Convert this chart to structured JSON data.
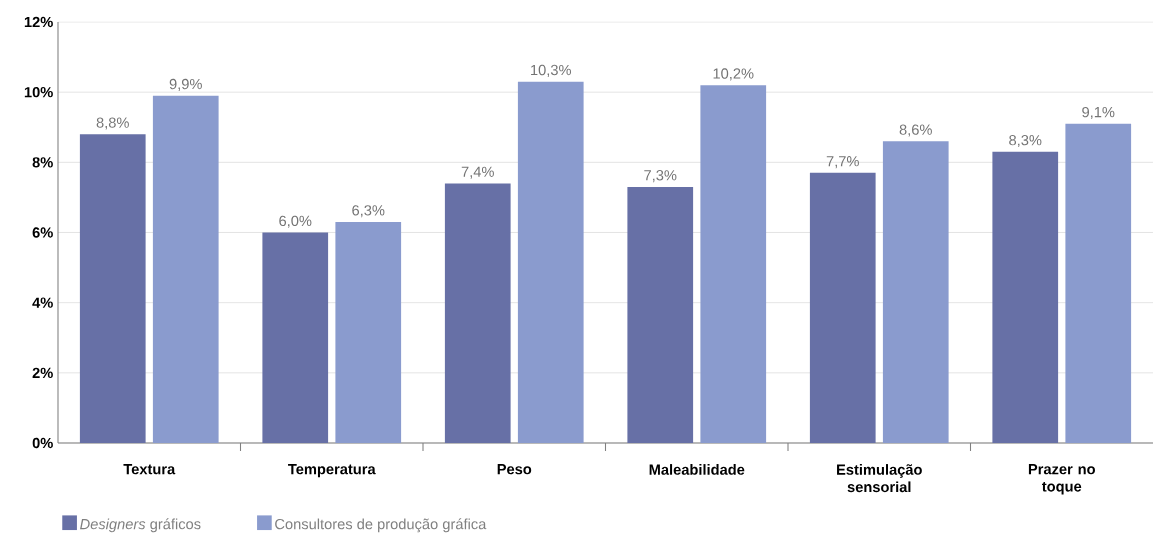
{
  "chart_data": {
    "type": "bar",
    "categories": [
      "Textura",
      "Temperatura",
      "Peso",
      "Maleabilidade",
      "Estimulação sensorial",
      "Prazer no toque"
    ],
    "series": [
      {
        "name": "*Designers* gráficos",
        "color": "#6770a6",
        "values": [
          8.8,
          6.0,
          7.4,
          7.3,
          7.7,
          8.3
        ],
        "value_labels": [
          "8,8%",
          "6,0%",
          "7,4%",
          "7,3%",
          "7,7%",
          "8,3%"
        ]
      },
      {
        "name": "Consultores de produção gráfica",
        "color": "#8a9bce",
        "values": [
          9.9,
          6.3,
          10.3,
          10.2,
          8.6,
          9.1
        ],
        "value_labels": [
          "9,9%",
          "6,3%",
          "10,3%",
          "10,2%",
          "8,6%",
          "9,1%"
        ]
      }
    ],
    "ylim": [
      0,
      12
    ],
    "yticks": [
      {
        "value": 0,
        "label": "0%"
      },
      {
        "value": 2,
        "label": "2%"
      },
      {
        "value": 4,
        "label": "4%"
      },
      {
        "value": 6,
        "label": "6%"
      },
      {
        "value": 8,
        "label": "8%"
      },
      {
        "value": 10,
        "label": "10%"
      },
      {
        "value": 12,
        "label": "12%"
      }
    ],
    "grid": "y",
    "legend": "bottom left"
  }
}
